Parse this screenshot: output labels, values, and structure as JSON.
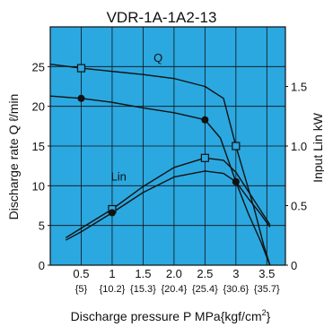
{
  "colors": {
    "plot_bg": "#2ba8e0",
    "grid": "#111111",
    "curve": "#111111",
    "marker_square": "#2ba8e0"
  },
  "chart_data": {
    "type": "line",
    "title": "VDR-1A-1A2-13",
    "xlabel": "Discharge pressure P  MPa{kgf/cm",
    "xlabel_sup": "2",
    "xlabel_end": "}",
    "ylabel_left": "Discharge rate Q ℓ/min",
    "ylabel_right": "Input Lin kW",
    "x_ticks": [
      "0.5",
      "1",
      "1.5",
      "2.0",
      "2.5",
      "3",
      "3.5"
    ],
    "x_ticks_kgf": [
      "{5}",
      "{10.2}",
      "{15.3}",
      "{20.4}",
      "{25.4}",
      "{30.6}",
      "{35.7}"
    ],
    "y_left_ticks": [
      "0",
      "5",
      "10",
      "15",
      "20",
      "25"
    ],
    "y_right_ticks": [
      "0",
      "0.5",
      "1.0",
      "1.5"
    ],
    "xlim": [
      0,
      3.8
    ],
    "ylim_left": [
      0,
      30
    ],
    "ylim_right": [
      0,
      2.0
    ],
    "grid": true,
    "series": [
      {
        "name": "Q",
        "axis": "left",
        "marker": "square",
        "x": [
          0,
          0.5,
          1.0,
          1.5,
          2.0,
          2.5,
          2.8,
          3.0,
          3.15,
          3.3,
          3.45,
          3.55
        ],
        "y": [
          25.3,
          24.8,
          24.4,
          24.0,
          23.5,
          22.5,
          21.0,
          15.0,
          11.0,
          7.0,
          2.5,
          0
        ],
        "markers_x": [
          0.5,
          3.0
        ],
        "markers_y": [
          24.8,
          15.0
        ]
      },
      {
        "name": "",
        "axis": "left",
        "marker": "circle",
        "x": [
          0,
          0.5,
          1.0,
          1.5,
          2.0,
          2.5,
          2.75,
          3.0,
          3.2,
          3.4,
          3.55
        ],
        "y": [
          21.3,
          21.0,
          20.5,
          19.8,
          19.2,
          18.3,
          16.0,
          10.5,
          6.5,
          3.0,
          0
        ],
        "markers_x": [
          0.5,
          2.5,
          3.0
        ],
        "markers_y": [
          21.0,
          18.3,
          10.5
        ]
      },
      {
        "name": "",
        "axis": "right",
        "marker": "square",
        "x": [
          0.25,
          0.5,
          1.0,
          1.5,
          2.0,
          2.5,
          2.8,
          3.0,
          3.2,
          3.4,
          3.55
        ],
        "y": [
          0.23,
          0.31,
          0.47,
          0.66,
          0.82,
          0.9,
          0.88,
          0.78,
          0.62,
          0.46,
          0.34
        ],
        "markers_x": [
          1.0,
          2.5
        ],
        "markers_y": [
          0.47,
          0.9
        ]
      },
      {
        "name": "",
        "axis": "right",
        "marker": "circle",
        "x": [
          0.25,
          0.5,
          1.0,
          1.5,
          2.0,
          2.5,
          2.8,
          3.0,
          3.2,
          3.4,
          3.55
        ],
        "y": [
          0.21,
          0.28,
          0.44,
          0.61,
          0.74,
          0.79,
          0.77,
          0.7,
          0.56,
          0.43,
          0.32
        ],
        "markers_x": [
          1.0,
          3.0
        ],
        "markers_y": [
          0.44,
          0.7
        ]
      }
    ],
    "annotations": [
      {
        "text": "Q",
        "x": 1.67,
        "y": 25.6,
        "axis": "left"
      },
      {
        "text": "Lin",
        "x": 0.98,
        "y": 0.71,
        "axis": "right"
      }
    ]
  }
}
